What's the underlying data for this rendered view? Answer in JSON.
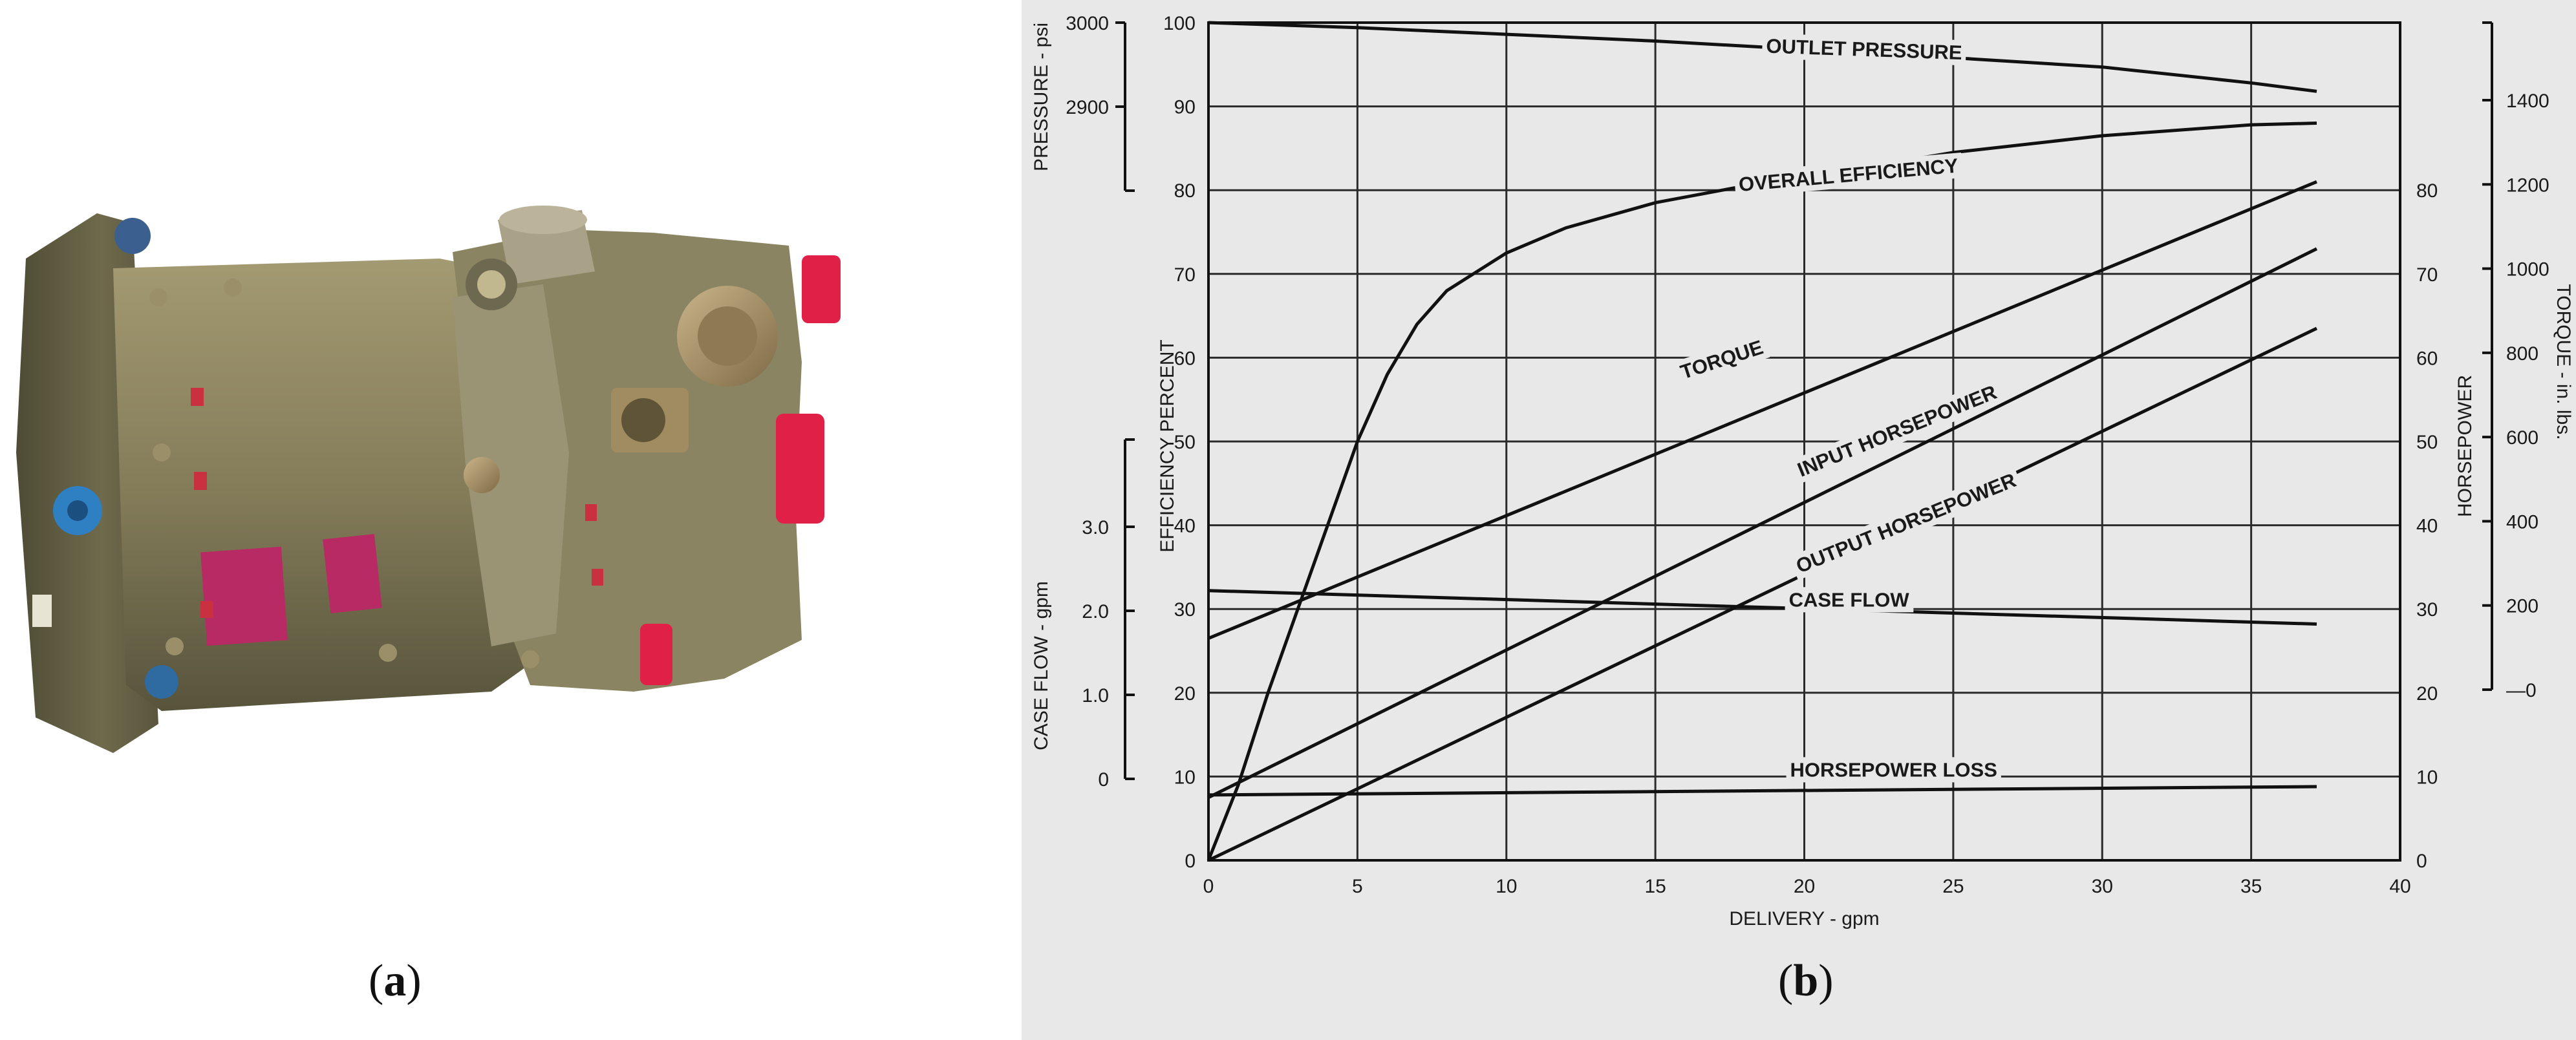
{
  "captions": {
    "a": "a",
    "b": "b"
  },
  "chart_data": {
    "type": "line",
    "x": {
      "label": "DELIVERY - gpm",
      "ticks": [
        0,
        5,
        10,
        15,
        20,
        25,
        30,
        35,
        40
      ],
      "range": [
        0,
        40
      ]
    },
    "left_axes": {
      "pressure": {
        "label": "PRESSURE - psi",
        "ticks": [
          "3000",
          "2900"
        ],
        "range": [
          2800,
          3000
        ]
      },
      "efficiency": {
        "label": "EFFICIENCY PERCENT",
        "ticks": [
          0,
          10,
          20,
          30,
          40,
          50,
          60,
          70,
          80,
          90,
          100
        ],
        "range": [
          0,
          100
        ]
      },
      "case_flow": {
        "label": "CASE FLOW - gpm",
        "ticks": [
          "3.0",
          "2.0",
          "1.0",
          "0"
        ],
        "range": [
          0,
          3.5
        ]
      }
    },
    "right_axes": {
      "horsepower": {
        "label": "HORSEPOWER",
        "ticks": [
          0,
          10,
          20,
          30,
          40,
          50,
          60,
          70,
          80
        ],
        "range": [
          0,
          100
        ]
      },
      "torque": {
        "label": "TORQUE - in. lbs.",
        "ticks": [
          0,
          200,
          400,
          600,
          800,
          1000,
          1200,
          1400
        ],
        "range": [
          0,
          1600
        ]
      }
    },
    "grid": true,
    "series": [
      {
        "name": "OUTLET PRESSURE",
        "axis": "efficiency",
        "x": [
          0,
          5,
          10,
          15,
          20,
          25,
          30,
          35,
          37.2
        ],
        "y": [
          100,
          99.4,
          98.6,
          97.8,
          96.8,
          95.8,
          94.7,
          92.8,
          91.8
        ]
      },
      {
        "name": "OVERALL EFFICIENCY",
        "axis": "efficiency",
        "x": [
          0,
          1,
          2,
          3,
          4,
          5,
          6,
          7,
          8,
          10,
          12,
          15,
          18,
          20,
          25,
          30,
          35,
          37.2
        ],
        "y": [
          0,
          9,
          20,
          30,
          40,
          50,
          58,
          64,
          68,
          72.5,
          75.5,
          78.5,
          80.5,
          81.5,
          84.5,
          86.5,
          87.8,
          88
        ]
      },
      {
        "name": "TORQUE",
        "axis": "efficiency",
        "x": [
          0,
          37.2
        ],
        "y": [
          26.5,
          81
        ]
      },
      {
        "name": "INPUT HORSEPOWER",
        "axis": "efficiency",
        "x": [
          0,
          37.2
        ],
        "y": [
          7.5,
          73
        ]
      },
      {
        "name": "OUTPUT HORSEPOWER",
        "axis": "efficiency",
        "x": [
          0,
          37.2
        ],
        "y": [
          0,
          63.5
        ]
      },
      {
        "name": "CASE FLOW",
        "axis": "efficiency",
        "x": [
          0,
          37.2
        ],
        "y": [
          32.2,
          28.2
        ]
      },
      {
        "name": "HORSEPOWER LOSS",
        "axis": "efficiency",
        "x": [
          0,
          37.2
        ],
        "y": [
          7.8,
          8.8
        ]
      }
    ]
  }
}
